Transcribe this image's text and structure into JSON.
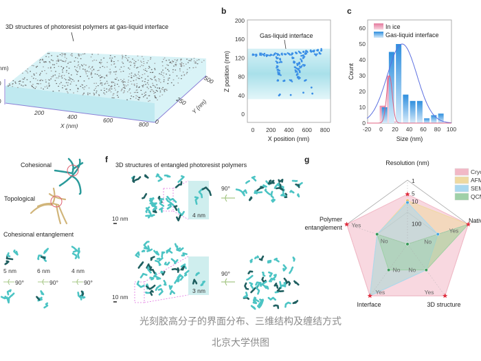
{
  "panel_a": {
    "title": "3D structures of photoresist polymers at gas-liquid interface",
    "z_axis_label": "nm)",
    "z_ticks": [
      "0",
      "0"
    ],
    "x_ticks": [
      "200",
      "400",
      "600",
      "800"
    ],
    "x_label": "X (nm)",
    "y_ticks": [
      "0",
      "250",
      "500"
    ],
    "y_label": "Y (nm)"
  },
  "panel_e": {
    "cohesional": "Cohesional",
    "topological": "Topological",
    "entanglement_title": "Cohesional entanglement",
    "sizes": [
      "5 nm",
      "6 nm",
      "4 nm"
    ],
    "rotation": "90°"
  },
  "panel_f": {
    "letter": "f",
    "title": "3D structures of entangled photoresist polymers",
    "scale_top": "10 nm",
    "inset_top": "4 nm",
    "rot_top": "90°",
    "scale_bottom": "10 nm",
    "inset_bottom": "3 nm",
    "rot_bottom": "90°"
  },
  "caption": {
    "line1": "光刻胶高分子的界面分布、三维结构及缠结方式",
    "line2": "北京大学供图"
  },
  "chart_data": [
    {
      "panel": "b",
      "type": "scatter",
      "xlabel": "X position (nm)",
      "ylabel": "Z position (nm)",
      "xlim": [
        0,
        800
      ],
      "ylim": [
        0,
        200
      ],
      "xticks": [
        "0",
        "200",
        "400",
        "600",
        "800"
      ],
      "yticks": [
        "0",
        "40",
        "80",
        "120",
        "160",
        "200"
      ],
      "annotation": "Gas-liquid interface",
      "interface_band": [
        32,
        140
      ],
      "color": "#3a8ee6",
      "points": [
        [
          10,
          127
        ],
        [
          40,
          126
        ],
        [
          80,
          127
        ],
        [
          120,
          127
        ],
        [
          160,
          126
        ],
        [
          200,
          127
        ],
        [
          240,
          128
        ],
        [
          280,
          128
        ],
        [
          320,
          129
        ],
        [
          360,
          128
        ],
        [
          400,
          129
        ],
        [
          440,
          130
        ],
        [
          480,
          131
        ],
        [
          520,
          132
        ],
        [
          560,
          133
        ],
        [
          600,
          134
        ],
        [
          640,
          135
        ],
        [
          680,
          136
        ],
        [
          720,
          136
        ],
        [
          760,
          137
        ],
        [
          265,
          120
        ],
        [
          270,
          110
        ],
        [
          275,
          102
        ],
        [
          300,
          118
        ],
        [
          310,
          112
        ],
        [
          285,
          94
        ],
        [
          290,
          88
        ],
        [
          295,
          85
        ],
        [
          450,
          120
        ],
        [
          460,
          110
        ],
        [
          470,
          100
        ],
        [
          480,
          92
        ],
        [
          490,
          85
        ],
        [
          500,
          80
        ],
        [
          510,
          76
        ],
        [
          520,
          90
        ],
        [
          530,
          100
        ],
        [
          540,
          115
        ],
        [
          550,
          125
        ],
        [
          560,
          120
        ],
        [
          570,
          105
        ],
        [
          580,
          130
        ],
        [
          505,
          95
        ],
        [
          495,
          105
        ],
        [
          515,
          110
        ],
        [
          280,
          72
        ],
        [
          340,
          71
        ],
        [
          420,
          72
        ],
        [
          580,
          72
        ],
        [
          650,
          57
        ],
        [
          300,
          42
        ],
        [
          420,
          41
        ],
        [
          560,
          46
        ],
        [
          660,
          44
        ],
        [
          290,
          40
        ],
        [
          700,
          126
        ],
        [
          740,
          130
        ]
      ]
    },
    {
      "panel": "c",
      "type": "bar",
      "xlabel": "Size (nm)",
      "ylabel": "Count",
      "xlim": [
        -20,
        100
      ],
      "ylim": [
        0,
        65
      ],
      "xticks": [
        "-20",
        "0",
        "20",
        "40",
        "60",
        "80",
        "100"
      ],
      "yticks": [
        "0",
        "10",
        "20",
        "30",
        "40",
        "50",
        "60"
      ],
      "legend_position": "top-left",
      "series": [
        {
          "name": "In ice",
          "color": "#e88aa8",
          "x": [
            2,
            12,
            22
          ],
          "values": [
            11,
            30,
            1
          ],
          "fit": {
            "mean": 12,
            "sd": 4,
            "peak": 30
          }
        },
        {
          "name": "Gas-liquid interface",
          "color": "#3a9be0",
          "x": [
            5,
            15,
            25,
            35,
            45,
            55,
            65,
            75,
            85
          ],
          "values": [
            10,
            45,
            50,
            18,
            14,
            14,
            3,
            5,
            6
          ],
          "fit": {
            "mean": 30,
            "sd": 21,
            "peak": 50
          }
        }
      ]
    },
    {
      "panel": "g",
      "type": "radar",
      "axes": [
        "Resolution\n(nm)",
        "Native state",
        "3D structure",
        "Interface",
        "Polymer entanglement"
      ],
      "resolution_ticks": [
        "1",
        "5",
        "10",
        "100"
      ],
      "yes_label": "Yes",
      "no_label": "No",
      "series": [
        {
          "name": "Cryo",
          "color": "#f2b8c6",
          "values": [
            0.78,
            1,
            1,
            1,
            1
          ]
        },
        {
          "name": "AFM",
          "color": "#efd9a0",
          "values": [
            0.68,
            1,
            0.5,
            1,
            0.5
          ]
        },
        {
          "name": "SEM",
          "color": "#a9d8f0",
          "values": [
            0.65,
            0.5,
            0.5,
            1,
            0.5
          ]
        },
        {
          "name": "QCM",
          "color": "#9fd0a8",
          "values": [
            0,
            1,
            0.5,
            0.5,
            0.5
          ]
        }
      ]
    }
  ],
  "labels": {
    "b": "b",
    "c": "c",
    "g": "g"
  }
}
